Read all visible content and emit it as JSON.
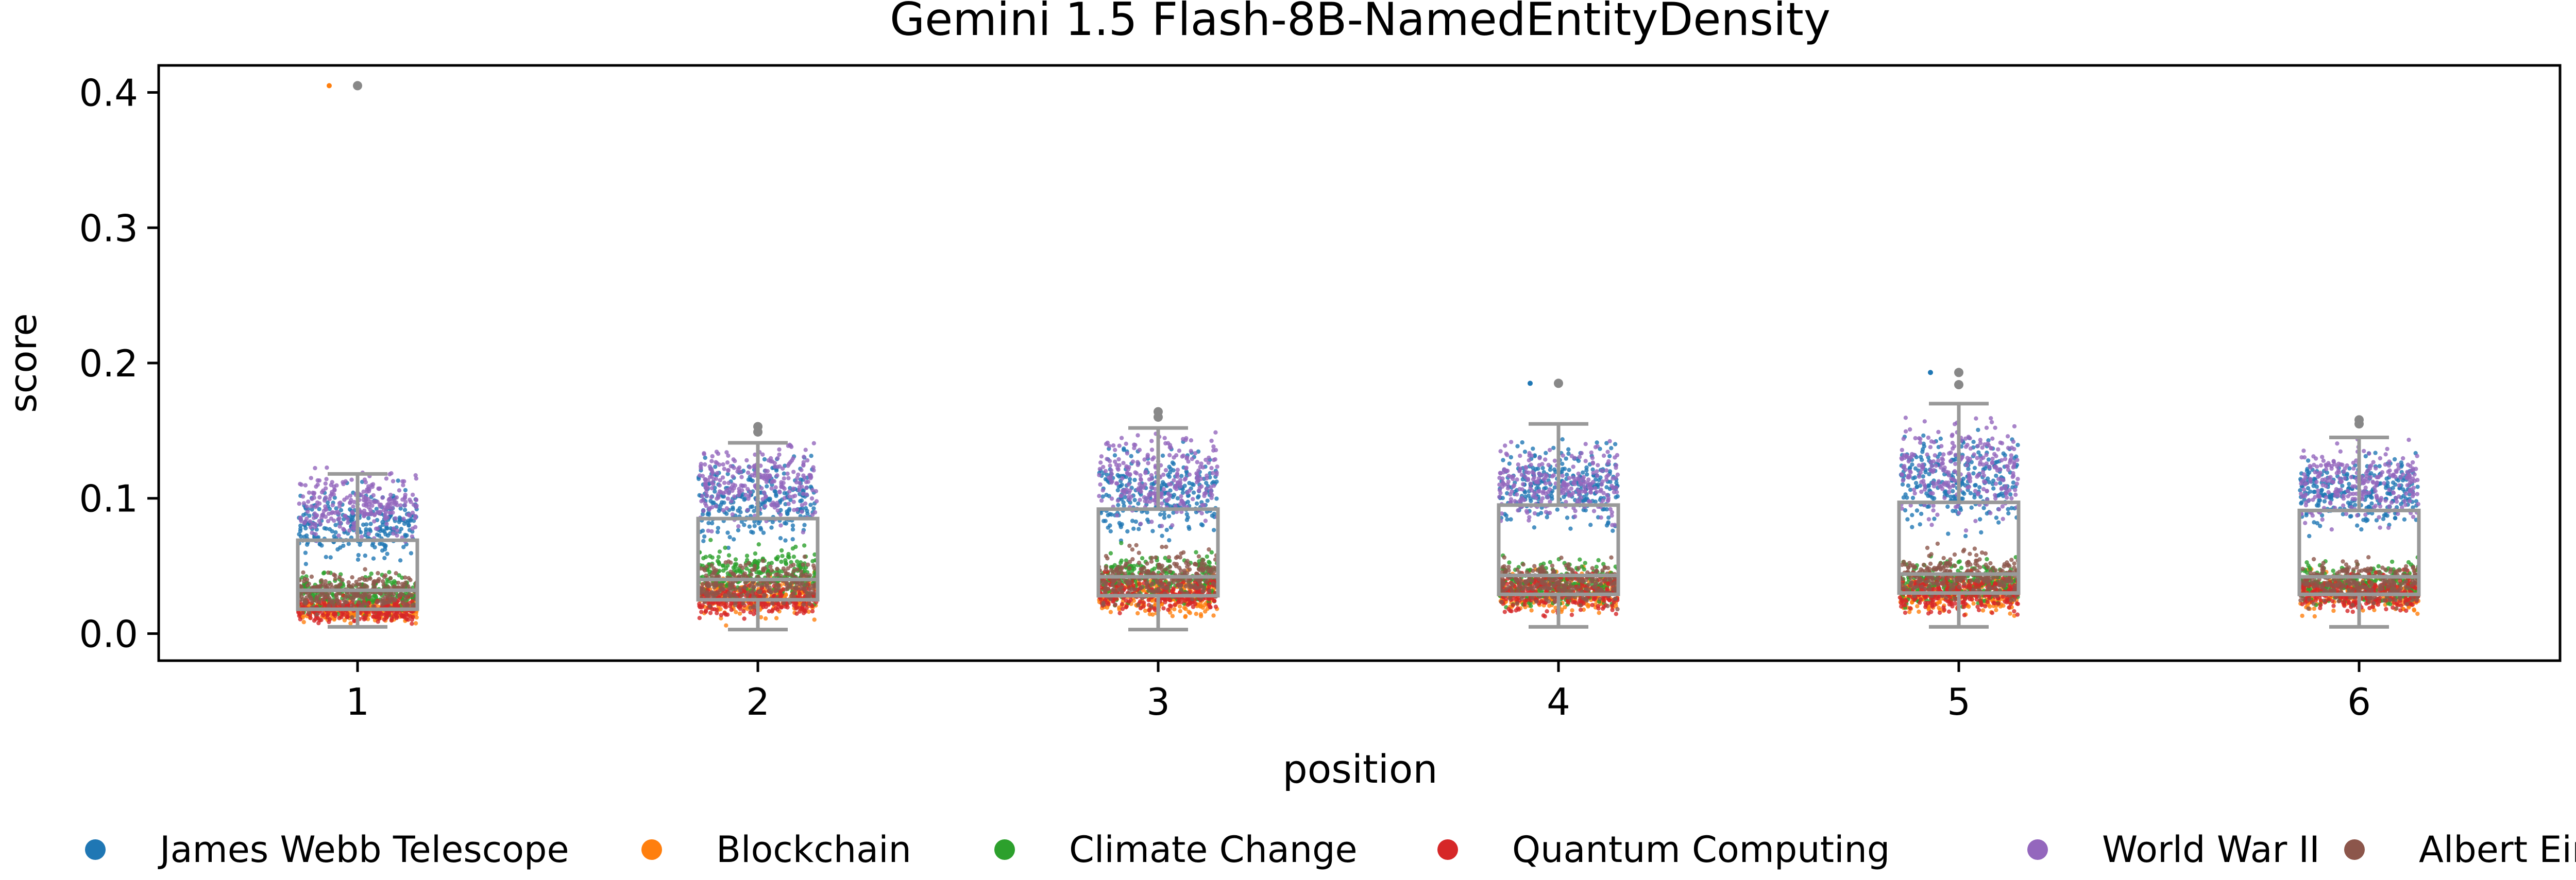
{
  "chart_data": {
    "type": "box",
    "title": "Gemini 1.5 Flash-8B-NamedEntityDensity",
    "xlabel": "position",
    "ylabel": "score",
    "categories": [
      "1",
      "2",
      "3",
      "4",
      "5",
      "6"
    ],
    "ylim": [
      -0.02,
      0.42
    ],
    "yticks": [
      "0.0",
      "0.1",
      "0.2",
      "0.3",
      "0.4"
    ],
    "grid": false,
    "legend_position": "bottom",
    "box_color": "#999999",
    "boxes": [
      {
        "position": "1",
        "whislo": 0.005,
        "q1": 0.018,
        "median": 0.032,
        "q3": 0.069,
        "whishi": 0.118,
        "fliers": [
          0.405
        ]
      },
      {
        "position": "2",
        "whislo": 0.003,
        "q1": 0.025,
        "median": 0.04,
        "q3": 0.085,
        "whishi": 0.141,
        "fliers": [
          0.149,
          0.153
        ]
      },
      {
        "position": "3",
        "whislo": 0.003,
        "q1": 0.028,
        "median": 0.042,
        "q3": 0.092,
        "whishi": 0.152,
        "fliers": [
          0.16,
          0.164
        ]
      },
      {
        "position": "4",
        "whislo": 0.005,
        "q1": 0.029,
        "median": 0.043,
        "q3": 0.095,
        "whishi": 0.155,
        "fliers": [
          0.185
        ]
      },
      {
        "position": "5",
        "whislo": 0.005,
        "q1": 0.03,
        "median": 0.044,
        "q3": 0.097,
        "whishi": 0.17,
        "fliers": [
          0.184,
          0.193
        ]
      },
      {
        "position": "6",
        "whislo": 0.005,
        "q1": 0.029,
        "median": 0.042,
        "q3": 0.091,
        "whishi": 0.145,
        "fliers": [
          0.155,
          0.158
        ]
      }
    ],
    "series": [
      {
        "name": "James Webb Telescope",
        "color": "#1f77b4",
        "ranges": [
          [
            0.04,
            0.12
          ],
          [
            0.06,
            0.14
          ],
          [
            0.06,
            0.15
          ],
          [
            0.07,
            0.15
          ],
          [
            0.07,
            0.16
          ],
          [
            0.07,
            0.14
          ]
        ]
      },
      {
        "name": "Blockchain",
        "color": "#ff7f0e",
        "ranges": [
          [
            0.005,
            0.03
          ],
          [
            0.005,
            0.05
          ],
          [
            0.005,
            0.05
          ],
          [
            0.01,
            0.05
          ],
          [
            0.01,
            0.05
          ],
          [
            0.01,
            0.05
          ]
        ]
      },
      {
        "name": "Climate Change",
        "color": "#2ca02c",
        "ranges": [
          [
            0.01,
            0.05
          ],
          [
            0.02,
            0.07
          ],
          [
            0.015,
            0.07
          ],
          [
            0.015,
            0.06
          ],
          [
            0.015,
            0.06
          ],
          [
            0.015,
            0.06
          ]
        ]
      },
      {
        "name": "Quantum Computing",
        "color": "#d62728",
        "ranges": [
          [
            0.005,
            0.03
          ],
          [
            0.008,
            0.04
          ],
          [
            0.01,
            0.05
          ],
          [
            0.01,
            0.05
          ],
          [
            0.01,
            0.05
          ],
          [
            0.01,
            0.05
          ]
        ]
      },
      {
        "name": "World War II",
        "color": "#9467bd",
        "ranges": [
          [
            0.06,
            0.13
          ],
          [
            0.07,
            0.15
          ],
          [
            0.07,
            0.16
          ],
          [
            0.07,
            0.15
          ],
          [
            0.07,
            0.17
          ],
          [
            0.07,
            0.15
          ]
        ]
      },
      {
        "name": "Albert Einstein",
        "color": "#8c564b",
        "ranges": [
          [
            0.01,
            0.05
          ],
          [
            0.015,
            0.06
          ],
          [
            0.015,
            0.07
          ],
          [
            0.015,
            0.06
          ],
          [
            0.015,
            0.07
          ],
          [
            0.015,
            0.06
          ]
        ]
      }
    ],
    "outlier_points": [
      {
        "position": "1",
        "series": "Blockchain",
        "value": 0.405
      },
      {
        "position": "4",
        "series": "James Webb Telescope",
        "value": 0.185
      },
      {
        "position": "5",
        "series": "James Webb Telescope",
        "value": 0.193
      }
    ],
    "legend": [
      "James Webb Telescope",
      "Blockchain",
      "Climate Change",
      "Quantum Computing",
      "World War II",
      "Albert Einstein"
    ]
  }
}
